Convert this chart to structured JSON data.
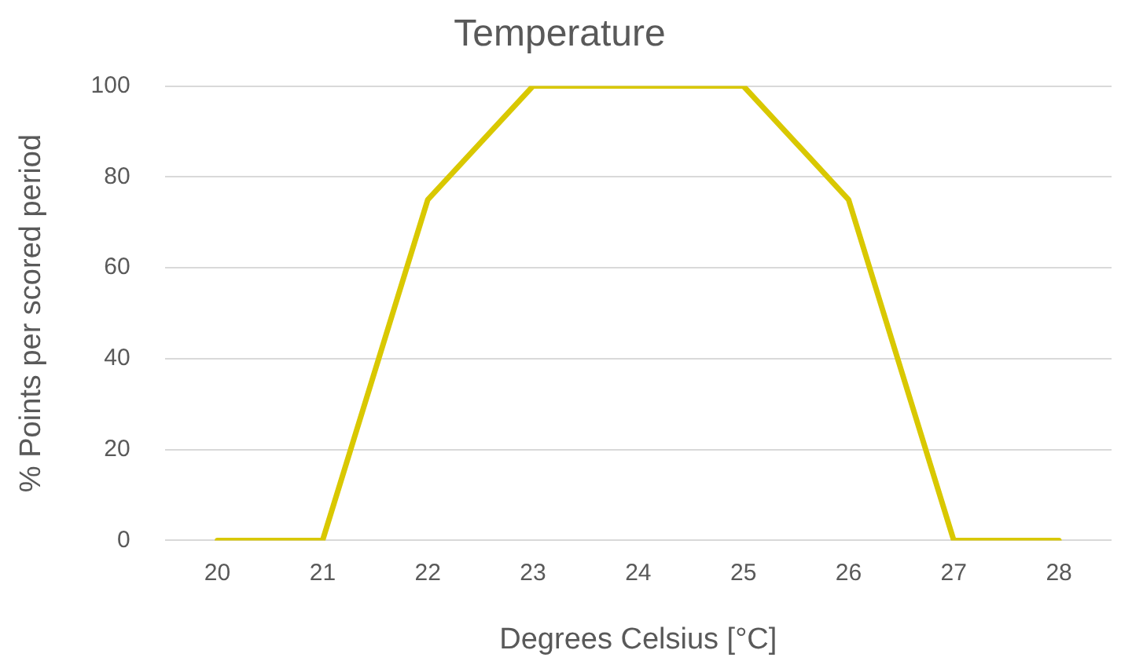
{
  "chart_data": {
    "type": "line",
    "title": "Temperature",
    "xlabel": "Degrees Celsius [°C]",
    "ylabel": "% Points per scored period",
    "categories": [
      "20",
      "21",
      "22",
      "23",
      "24",
      "25",
      "26",
      "27",
      "28"
    ],
    "series": [
      {
        "color": "#d9c800",
        "values": [
          0,
          0,
          75,
          100,
          100,
          100,
          75,
          0,
          0
        ]
      }
    ],
    "ylim": [
      0,
      100
    ],
    "yticks": [
      0,
      20,
      40,
      60,
      80,
      100
    ],
    "grid": "y",
    "legend": false,
    "marker": "none",
    "line_style": "solid"
  }
}
